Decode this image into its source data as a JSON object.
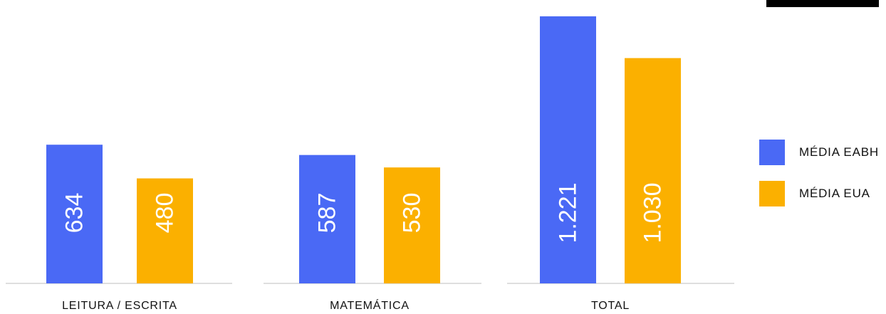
{
  "chart_data": {
    "type": "bar",
    "categories": [
      "LEITURA / ESCRITA",
      "MATEMÁTICA",
      "TOTAL"
    ],
    "series": [
      {
        "name": "MÉDIA EABH",
        "values": [
          634,
          587,
          1221
        ],
        "labels": [
          "634",
          "587",
          "1.221"
        ],
        "color": "#4a69f5"
      },
      {
        "name": "MÉDIA EUA",
        "values": [
          480,
          530,
          1030
        ],
        "labels": [
          "480",
          "530",
          "1.030"
        ],
        "color": "#fbb000"
      }
    ],
    "ylim": [
      0,
      1250
    ],
    "grid": false,
    "legend_position": "right"
  }
}
